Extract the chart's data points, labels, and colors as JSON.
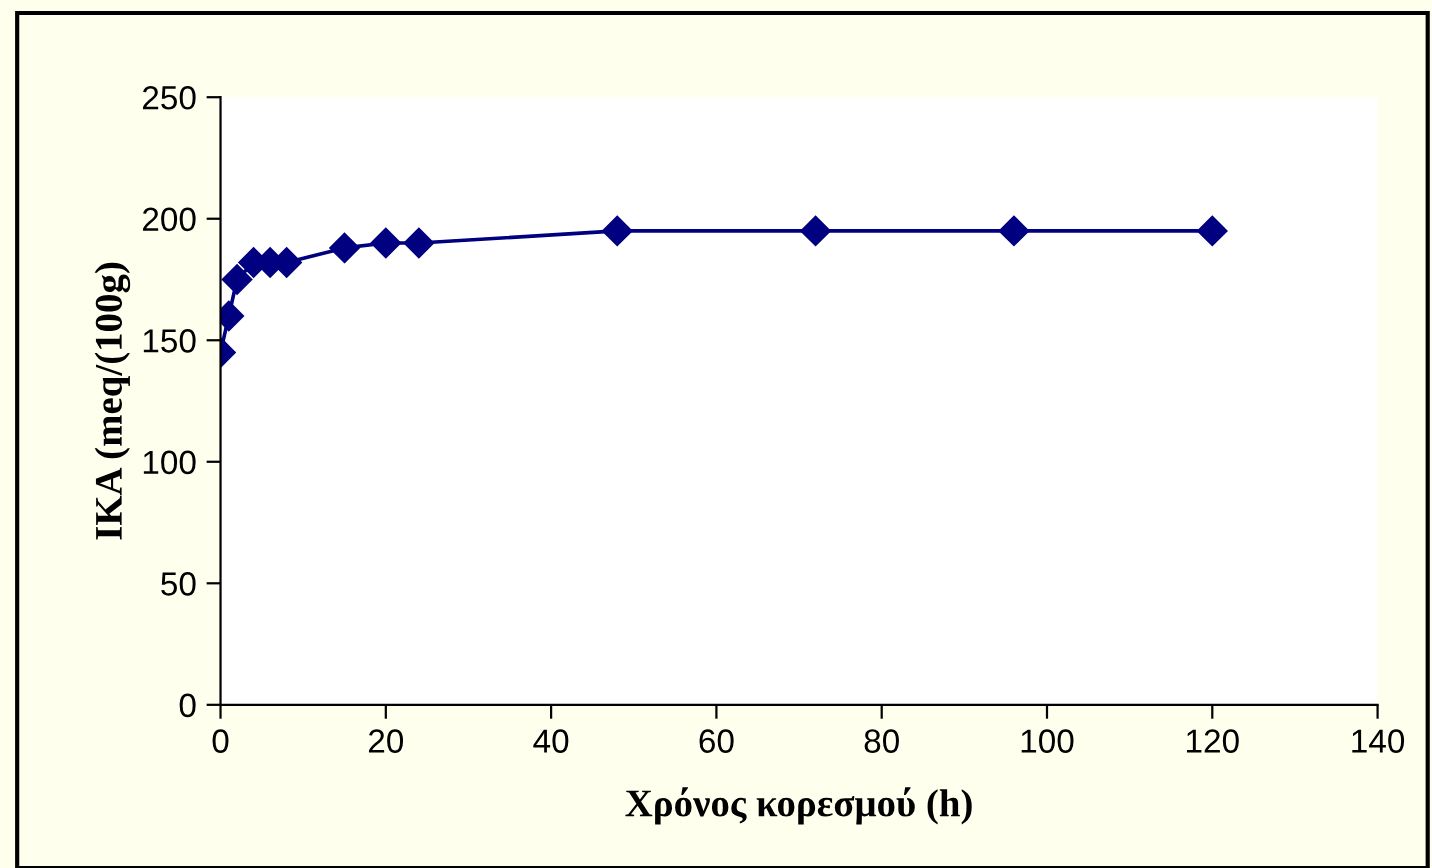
{
  "chart_data": {
    "type": "line",
    "xlabel": "Χρόνος κορεσμού (h)",
    "ylabel": "ΙΚΑ (meq/(100g)",
    "x": [
      0,
      1,
      2,
      4,
      6,
      8,
      15,
      20,
      24,
      48,
      72,
      96,
      120
    ],
    "series": [
      {
        "color": "#000080",
        "values": [
          145,
          160,
          175,
          182,
          182,
          182,
          188,
          190,
          190,
          195,
          195,
          195,
          195
        ]
      }
    ],
    "xlim": [
      0,
      140
    ],
    "xticks": [
      0,
      20,
      40,
      60,
      80,
      100,
      120,
      140
    ],
    "ylim": [
      0,
      250
    ],
    "yticks": [
      0,
      50,
      100,
      150,
      200,
      250
    ],
    "marker": "diamond",
    "line_style": "solid",
    "grid": false,
    "legend": false
  }
}
